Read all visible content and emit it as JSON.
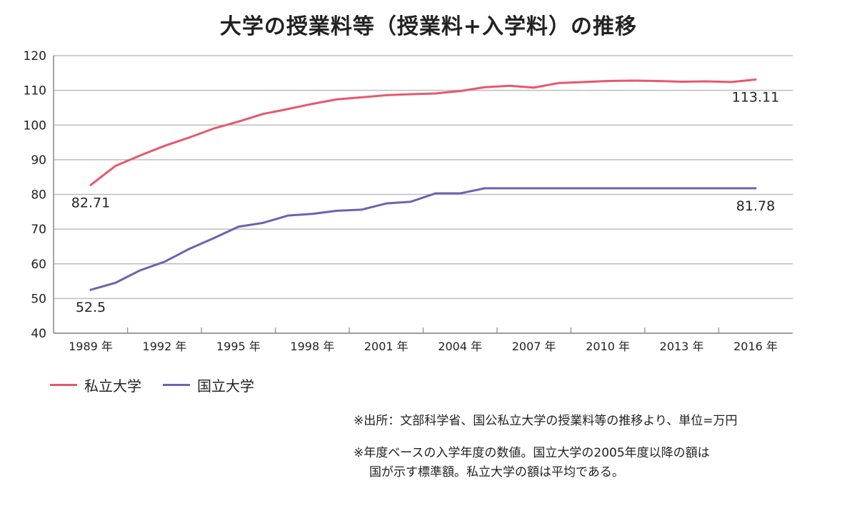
{
  "chart_data": {
    "type": "line",
    "title": "大学の授業料等（授業料+入学料）の推移",
    "x": [
      1989,
      1990,
      1991,
      1992,
      1993,
      1994,
      1995,
      1996,
      1997,
      1998,
      1999,
      2000,
      2001,
      2002,
      2003,
      2004,
      2005,
      2006,
      2007,
      2008,
      2009,
      2010,
      2011,
      2012,
      2013,
      2014,
      2015,
      2016
    ],
    "x_tick_values": [
      1989,
      1992,
      1995,
      1998,
      2001,
      2004,
      2007,
      2010,
      2013,
      2016
    ],
    "x_tick_labels": [
      "1989 年",
      "1992 年",
      "1995 年",
      "1998 年",
      "2001 年",
      "2004 年",
      "2007 年",
      "2010 年",
      "2013 年",
      "2016 年"
    ],
    "y_ticks": [
      40,
      50,
      60,
      70,
      80,
      90,
      100,
      110,
      120
    ],
    "ylim": [
      40,
      120
    ],
    "grid": true,
    "series": [
      {
        "name": "私立大学",
        "color": "#e8576d",
        "values": [
          82.71,
          88.2,
          91.2,
          94.0,
          96.4,
          99.0,
          101.0,
          103.2,
          104.6,
          106.1,
          107.4,
          108.0,
          108.6,
          108.9,
          109.1,
          109.8,
          110.9,
          111.3,
          110.8,
          112.1,
          112.4,
          112.7,
          112.8,
          112.7,
          112.5,
          112.6,
          112.4,
          113.11
        ]
      },
      {
        "name": "国立大学",
        "color": "#7160b3",
        "values": [
          52.5,
          54.5,
          58.1,
          60.6,
          64.3,
          67.4,
          70.7,
          71.8,
          73.9,
          74.4,
          75.3,
          75.6,
          77.4,
          77.9,
          80.3,
          80.3,
          81.78,
          81.78,
          81.78,
          81.78,
          81.78,
          81.78,
          81.78,
          81.78,
          81.78,
          81.78,
          81.78,
          81.78
        ]
      }
    ],
    "annotations": [
      {
        "text": "82.71",
        "x": 1989,
        "y": 82.71,
        "pos": "below"
      },
      {
        "text": "52.5",
        "x": 1989,
        "y": 52.5,
        "pos": "below"
      },
      {
        "text": "113.11",
        "x": 2016,
        "y": 113.11,
        "pos": "below"
      },
      {
        "text": "81.78",
        "x": 2016,
        "y": 81.78,
        "pos": "below"
      }
    ],
    "legend_position": "bottom-left"
  },
  "notes": [
    "※出所：文部科学省、国公私立大学の授業料等の推移より、単位=万円",
    "※年度ベースの入学年度の数値。国立大学の2005年度以降の額は",
    "国が示す標準額。私立大学の額は平均である。"
  ]
}
